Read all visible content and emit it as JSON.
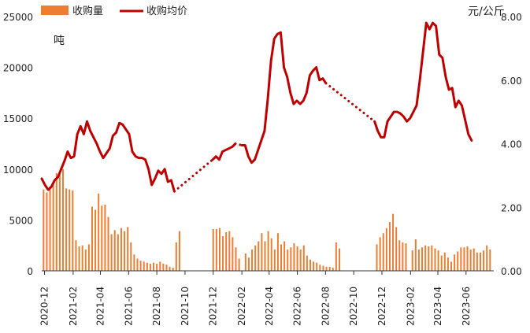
{
  "chart_data": {
    "type": "bar+line",
    "legend": {
      "position": "top-left",
      "bar_label": "收购量",
      "line_label": "收购均价"
    },
    "left_axis": {
      "unit": "吨",
      "ylim": [
        0,
        25000
      ],
      "ticks": [
        "0",
        "5000",
        "10000",
        "15000",
        "20000",
        "25000"
      ]
    },
    "right_axis": {
      "unit": "元/公斤",
      "ylim": [
        0,
        8
      ],
      "ticks": [
        "0.00",
        "2.00",
        "4.00",
        "6.00",
        "8.00"
      ]
    },
    "x_ticks": [
      "2020-12",
      "2021-02",
      "2021-04",
      "2021-06",
      "2021-08",
      "2021-10",
      "2021-12",
      "2022-02",
      "2022-04",
      "2022-06",
      "2022-08",
      "2022-10",
      "2022-12",
      "2023-02",
      "2023-04",
      "2023-06"
    ],
    "x_range": [
      "2020-11-25",
      "2023-07-31"
    ],
    "colors": {
      "bar": "#ED7D31",
      "line": "#C00000"
    },
    "series": [
      {
        "name": "收购量",
        "type": "bar",
        "points": [
          [
            "2020-11-29",
            8000
          ],
          [
            "2020-12-06",
            7700
          ],
          [
            "2020-12-13",
            8300
          ],
          [
            "2020-12-20",
            8500
          ],
          [
            "2020-12-27",
            9600
          ],
          [
            "2021-01-03",
            9800
          ],
          [
            "2021-01-10",
            10000
          ],
          [
            "2021-01-17",
            8100
          ],
          [
            "2021-01-24",
            8000
          ],
          [
            "2021-01-31",
            7900
          ],
          [
            "2021-02-07",
            3000
          ],
          [
            "2021-02-14",
            2400
          ],
          [
            "2021-02-21",
            2500
          ],
          [
            "2021-02-28",
            2100
          ],
          [
            "2021-03-07",
            2600
          ],
          [
            "2021-03-14",
            6300
          ],
          [
            "2021-03-21",
            6000
          ],
          [
            "2021-03-28",
            7600
          ],
          [
            "2021-04-04",
            6400
          ],
          [
            "2021-04-11",
            6500
          ],
          [
            "2021-04-18",
            5300
          ],
          [
            "2021-04-25",
            3600
          ],
          [
            "2021-05-02",
            4000
          ],
          [
            "2021-05-09",
            3600
          ],
          [
            "2021-05-16",
            4200
          ],
          [
            "2021-05-23",
            3900
          ],
          [
            "2021-05-30",
            4300
          ],
          [
            "2021-06-06",
            2800
          ],
          [
            "2021-06-13",
            1600
          ],
          [
            "2021-06-20",
            1200
          ],
          [
            "2021-06-27",
            1000
          ],
          [
            "2021-07-04",
            900
          ],
          [
            "2021-07-11",
            800
          ],
          [
            "2021-07-18",
            700
          ],
          [
            "2021-07-25",
            800
          ],
          [
            "2021-08-01",
            700
          ],
          [
            "2021-08-08",
            900
          ],
          [
            "2021-08-15",
            700
          ],
          [
            "2021-08-22",
            600
          ],
          [
            "2021-08-29",
            400
          ],
          [
            "2021-09-05",
            300
          ],
          [
            "2021-09-12",
            2800
          ],
          [
            "2021-09-19",
            3900
          ],
          [
            "2021-12-01",
            4100
          ],
          [
            "2021-12-08",
            4100
          ],
          [
            "2021-12-15",
            4200
          ],
          [
            "2021-12-22",
            3400
          ],
          [
            "2021-12-29",
            3800
          ],
          [
            "2022-01-05",
            3900
          ],
          [
            "2022-01-12",
            3300
          ],
          [
            "2022-01-19",
            2300
          ],
          [
            "2022-01-26",
            1200
          ],
          [
            "2022-02-09",
            1700
          ],
          [
            "2022-02-16",
            1300
          ],
          [
            "2022-02-23",
            2100
          ],
          [
            "2022-03-02",
            2500
          ],
          [
            "2022-03-09",
            2900
          ],
          [
            "2022-03-16",
            3700
          ],
          [
            "2022-03-23",
            2900
          ],
          [
            "2022-03-30",
            3900
          ],
          [
            "2022-04-06",
            3200
          ],
          [
            "2022-04-13",
            2100
          ],
          [
            "2022-04-20",
            3700
          ],
          [
            "2022-04-27",
            2600
          ],
          [
            "2022-05-04",
            2900
          ],
          [
            "2022-05-11",
            2100
          ],
          [
            "2022-05-18",
            2300
          ],
          [
            "2022-05-25",
            2700
          ],
          [
            "2022-06-01",
            2400
          ],
          [
            "2022-06-08",
            2100
          ],
          [
            "2022-06-15",
            2500
          ],
          [
            "2022-06-22",
            1500
          ],
          [
            "2022-06-29",
            1100
          ],
          [
            "2022-07-06",
            900
          ],
          [
            "2022-07-13",
            800
          ],
          [
            "2022-07-20",
            600
          ],
          [
            "2022-07-27",
            500
          ],
          [
            "2022-08-03",
            400
          ],
          [
            "2022-08-10",
            400
          ],
          [
            "2022-08-17",
            300
          ],
          [
            "2022-08-24",
            2800
          ],
          [
            "2022-08-31",
            2200
          ],
          [
            "2022-11-20",
            2600
          ],
          [
            "2022-11-27",
            3300
          ],
          [
            "2022-12-04",
            3700
          ],
          [
            "2022-12-11",
            4200
          ],
          [
            "2022-12-18",
            4800
          ],
          [
            "2022-12-25",
            5600
          ],
          [
            "2023-01-01",
            4300
          ],
          [
            "2023-01-08",
            3000
          ],
          [
            "2023-01-15",
            2800
          ],
          [
            "2023-01-22",
            2700
          ],
          [
            "2023-02-05",
            2000
          ],
          [
            "2023-02-12",
            3100
          ],
          [
            "2023-02-19",
            2100
          ],
          [
            "2023-02-26",
            2300
          ],
          [
            "2023-03-05",
            2500
          ],
          [
            "2023-03-12",
            2400
          ],
          [
            "2023-03-19",
            2500
          ],
          [
            "2023-03-26",
            2200
          ],
          [
            "2023-04-02",
            2000
          ],
          [
            "2023-04-09",
            1500
          ],
          [
            "2023-04-16",
            1800
          ],
          [
            "2023-04-23",
            1300
          ],
          [
            "2023-04-30",
            900
          ],
          [
            "2023-05-07",
            1600
          ],
          [
            "2023-05-14",
            1900
          ],
          [
            "2023-05-21",
            2300
          ],
          [
            "2023-05-28",
            2300
          ],
          [
            "2023-06-04",
            2400
          ],
          [
            "2023-06-11",
            2100
          ],
          [
            "2023-06-18",
            2200
          ],
          [
            "2023-06-25",
            1800
          ],
          [
            "2023-07-02",
            1800
          ],
          [
            "2023-07-09",
            2000
          ],
          [
            "2023-07-16",
            2500
          ],
          [
            "2023-07-23",
            2100
          ]
        ]
      },
      {
        "name": "收购均价",
        "type": "line",
        "segments": [
          {
            "style": "solid",
            "points": [
              [
                "2020-11-25",
                2.9
              ],
              [
                "2020-12-02",
                2.7
              ],
              [
                "2020-12-09",
                2.55
              ],
              [
                "2020-12-16",
                2.65
              ],
              [
                "2020-12-23",
                2.85
              ],
              [
                "2020-12-30",
                2.95
              ],
              [
                "2021-01-06",
                3.2
              ],
              [
                "2021-01-13",
                3.45
              ],
              [
                "2021-01-20",
                3.75
              ],
              [
                "2021-01-27",
                3.55
              ],
              [
                "2021-02-03",
                3.6
              ],
              [
                "2021-02-10",
                4.3
              ],
              [
                "2021-02-17",
                4.55
              ],
              [
                "2021-02-24",
                4.3
              ],
              [
                "2021-03-03",
                4.7
              ],
              [
                "2021-03-10",
                4.4
              ],
              [
                "2021-03-17",
                4.2
              ],
              [
                "2021-03-24",
                4.0
              ],
              [
                "2021-03-31",
                3.75
              ],
              [
                "2021-04-07",
                3.55
              ],
              [
                "2021-04-14",
                3.7
              ],
              [
                "2021-04-21",
                3.85
              ],
              [
                "2021-04-28",
                4.25
              ],
              [
                "2021-05-05",
                4.35
              ],
              [
                "2021-05-12",
                4.65
              ],
              [
                "2021-05-19",
                4.6
              ],
              [
                "2021-05-26",
                4.45
              ],
              [
                "2021-06-02",
                4.3
              ],
              [
                "2021-06-09",
                3.75
              ],
              [
                "2021-06-16",
                3.6
              ],
              [
                "2021-06-23",
                3.55
              ],
              [
                "2021-06-30",
                3.55
              ],
              [
                "2021-07-07",
                3.5
              ],
              [
                "2021-07-14",
                3.2
              ],
              [
                "2021-07-21",
                2.7
              ],
              [
                "2021-07-28",
                2.9
              ],
              [
                "2021-08-04",
                3.15
              ],
              [
                "2021-08-11",
                3.05
              ],
              [
                "2021-08-18",
                3.2
              ],
              [
                "2021-08-25",
                2.8
              ],
              [
                "2021-09-01",
                2.85
              ],
              [
                "2021-09-08",
                2.5
              ]
            ]
          },
          {
            "style": "dotted",
            "points": [
              [
                "2021-09-08",
                2.5
              ],
              [
                "2021-11-30",
                3.5
              ]
            ]
          },
          {
            "style": "solid",
            "points": [
              [
                "2021-11-30",
                3.5
              ],
              [
                "2021-12-07",
                3.6
              ],
              [
                "2021-12-14",
                3.5
              ],
              [
                "2021-12-21",
                3.75
              ],
              [
                "2021-12-28",
                3.8
              ],
              [
                "2022-01-04",
                3.85
              ],
              [
                "2022-01-11",
                3.9
              ],
              [
                "2022-01-18",
                4.0
              ]
            ]
          },
          {
            "style": "dotted",
            "points": [
              [
                "2022-01-18",
                4.0
              ],
              [
                "2022-02-01",
                3.95
              ]
            ]
          },
          {
            "style": "solid",
            "points": [
              [
                "2022-02-01",
                3.95
              ],
              [
                "2022-02-08",
                3.95
              ],
              [
                "2022-02-15",
                3.6
              ],
              [
                "2022-02-22",
                3.4
              ],
              [
                "2022-03-01",
                3.5
              ],
              [
                "2022-03-08",
                3.8
              ],
              [
                "2022-03-15",
                4.1
              ],
              [
                "2022-03-22",
                4.4
              ],
              [
                "2022-03-29",
                5.4
              ],
              [
                "2022-04-05",
                6.6
              ],
              [
                "2022-04-12",
                7.3
              ],
              [
                "2022-04-19",
                7.45
              ],
              [
                "2022-04-26",
                7.5
              ],
              [
                "2022-05-03",
                6.4
              ],
              [
                "2022-05-10",
                6.1
              ],
              [
                "2022-05-17",
                5.6
              ],
              [
                "2022-05-24",
                5.25
              ],
              [
                "2022-05-31",
                5.35
              ],
              [
                "2022-06-07",
                5.25
              ],
              [
                "2022-06-14",
                5.35
              ],
              [
                "2022-06-21",
                5.6
              ],
              [
                "2022-06-28",
                6.15
              ],
              [
                "2022-07-05",
                6.3
              ],
              [
                "2022-07-12",
                6.4
              ],
              [
                "2022-07-19",
                6.0
              ],
              [
                "2022-07-26",
                6.05
              ],
              [
                "2022-08-02",
                5.9
              ]
            ]
          },
          {
            "style": "dotted",
            "points": [
              [
                "2022-08-02",
                5.9
              ],
              [
                "2022-11-15",
                4.7
              ]
            ]
          },
          {
            "style": "solid",
            "points": [
              [
                "2022-11-15",
                4.7
              ],
              [
                "2022-11-22",
                4.4
              ],
              [
                "2022-11-29",
                4.2
              ],
              [
                "2022-12-06",
                4.2
              ],
              [
                "2022-12-13",
                4.7
              ],
              [
                "2022-12-20",
                4.85
              ],
              [
                "2022-12-27",
                5.0
              ],
              [
                "2023-01-03",
                5.0
              ],
              [
                "2023-01-10",
                4.95
              ],
              [
                "2023-01-17",
                4.85
              ],
              [
                "2023-01-24",
                4.7
              ],
              [
                "2023-01-31",
                4.8
              ],
              [
                "2023-02-07",
                5.0
              ],
              [
                "2023-02-14",
                5.2
              ],
              [
                "2023-02-21",
                6.0
              ],
              [
                "2023-02-28",
                6.9
              ],
              [
                "2023-03-07",
                7.8
              ],
              [
                "2023-03-14",
                7.6
              ],
              [
                "2023-03-21",
                7.8
              ],
              [
                "2023-03-28",
                7.7
              ],
              [
                "2023-04-04",
                6.8
              ],
              [
                "2023-04-11",
                6.7
              ],
              [
                "2023-04-18",
                6.1
              ],
              [
                "2023-04-25",
                5.7
              ],
              [
                "2023-05-02",
                5.75
              ],
              [
                "2023-05-09",
                5.15
              ],
              [
                "2023-05-16",
                5.35
              ],
              [
                "2023-05-23",
                5.2
              ],
              [
                "2023-05-30",
                4.75
              ],
              [
                "2023-06-06",
                4.3
              ],
              [
                "2023-06-13",
                4.1
              ]
            ]
          }
        ]
      }
    ]
  }
}
